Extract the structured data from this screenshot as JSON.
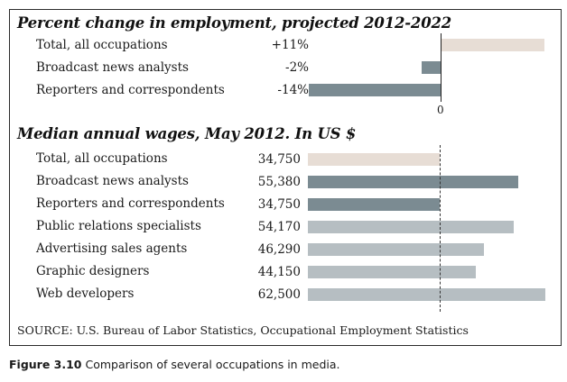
{
  "chart_data": [
    {
      "type": "bar",
      "orientation": "horizontal",
      "title": "Percent change in employment, projected 2012-2022",
      "categories": [
        "Total, all occupations",
        "Broadcast news analysts",
        "Reporters and correspondents"
      ],
      "values": [
        11,
        -2,
        -14
      ],
      "value_labels": [
        "+11%",
        "-2%",
        "-14%"
      ],
      "xlim": [
        -14,
        11
      ],
      "zero_tick_label": "0",
      "colors": [
        "#e7ddd5",
        "#7b8b92",
        "#7b8b92"
      ]
    },
    {
      "type": "bar",
      "orientation": "horizontal",
      "title": "Median annual wages, May 2012. In US $",
      "categories": [
        "Total, all occupations",
        "Broadcast news analysts",
        "Reporters and correspondents",
        "Public relations specialists",
        "Advertising sales agents",
        "Graphic designers",
        "Web developers"
      ],
      "values": [
        34750,
        55380,
        34750,
        54170,
        46290,
        44150,
        62500
      ],
      "value_labels": [
        "34,750",
        "55,380",
        "34,750",
        "54,170",
        "46,290",
        "44,150",
        "62,500"
      ],
      "xlim": [
        0,
        62500
      ],
      "reference_line": 34750,
      "colors": [
        "#e7ddd5",
        "#7b8b92",
        "#7b8b92",
        "#b6bec2",
        "#b6bec2",
        "#b6bec2",
        "#b6bec2"
      ]
    }
  ],
  "source": "SOURCE: U.S. Bureau of Labor Statistics, Occupational Employment Statistics",
  "caption": {
    "figure_label": "Figure 3.10",
    "text": "Comparison of several occupations in media."
  }
}
